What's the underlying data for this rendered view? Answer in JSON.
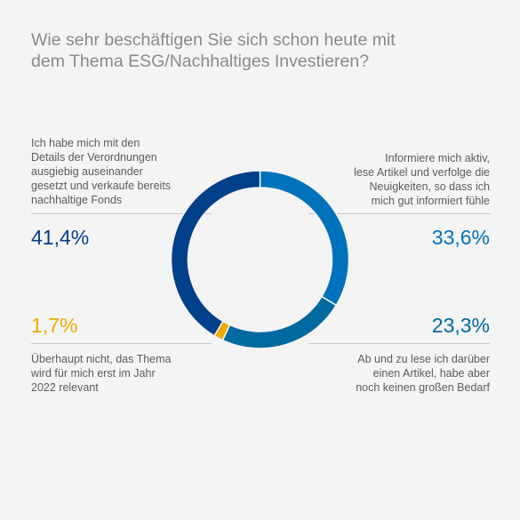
{
  "title_line1": "Wie sehr beschäftigen Sie sich schon heute mit",
  "title_line2": "dem Thema ESG/Nachhaltiges Investieren?",
  "colors": {
    "dark_blue": "#003f8a",
    "mid_blue": "#0072bb",
    "teal_blue": "#00699f",
    "yellow": "#f2a900",
    "text": "#5c5c5c",
    "title": "#8a8a8a"
  },
  "chart_data": {
    "type": "pie",
    "style": "donut",
    "title": "Wie sehr beschäftigen Sie sich schon heute mit dem Thema ESG/Nachhaltiges Investieren?",
    "slices": [
      {
        "value": 33.6,
        "value_label": "33,6%",
        "label_lines": [
          "Informiere mich aktiv,",
          "lese Artikel und verfolge die",
          "Neuigkeiten, so dass ich",
          "mich gut informiert fühle"
        ],
        "color": "#0072bb"
      },
      {
        "value": 23.3,
        "value_label": "23,3%",
        "label_lines": [
          "Ab und zu lese ich darüber",
          "einen Artikel, habe aber",
          "noch keinen großen Bedarf"
        ],
        "color": "#00699f"
      },
      {
        "value": 1.7,
        "value_label": "1,7%",
        "label_lines": [
          "Überhaupt nicht, das Thema",
          "wird für mich erst im Jahr",
          "2022 relevant"
        ],
        "color": "#f2a900"
      },
      {
        "value": 41.4,
        "value_label": "41,4%",
        "label_lines": [
          "Ich habe mich mit den",
          "Details der Verordnungen",
          "ausgiebig auseinander",
          "gesetzt und verkaufe bereits",
          "nachhaltige Fonds"
        ],
        "color": "#003f8a"
      }
    ]
  }
}
